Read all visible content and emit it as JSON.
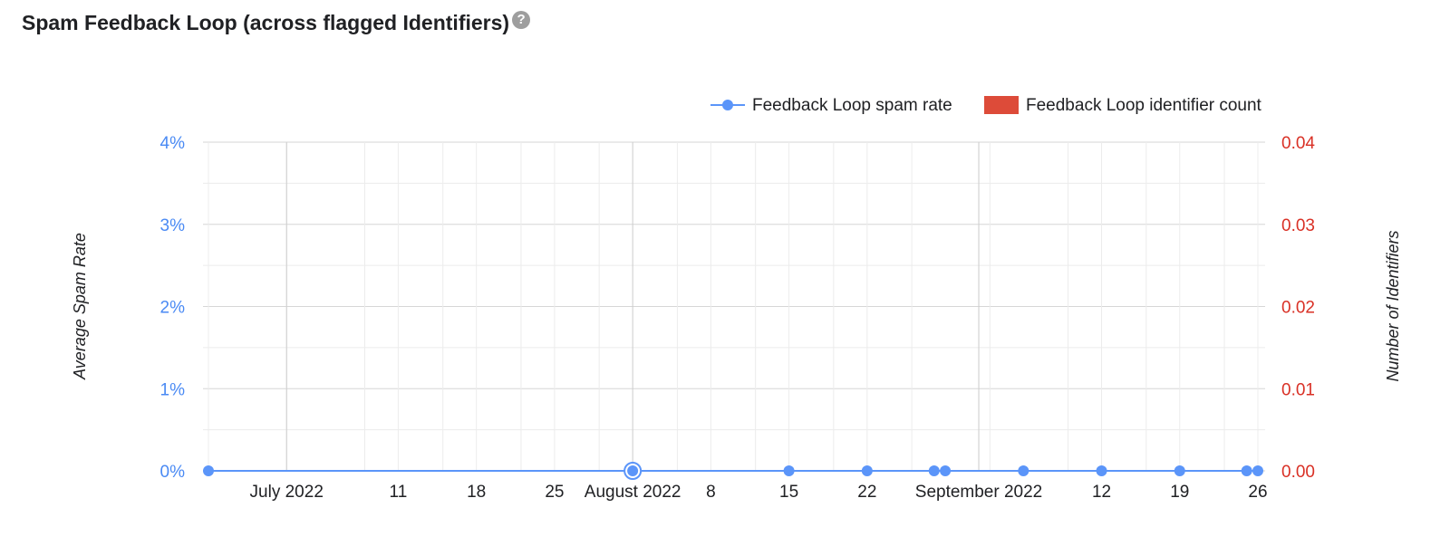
{
  "header": {
    "title": "Spam Feedback Loop (across flagged Identifiers)",
    "help_icon": "question-mark-circle-icon"
  },
  "chart_data": {
    "type": "line",
    "title": "Spam Feedback Loop (across flagged Identifiers)",
    "legend": {
      "placement": "top-right",
      "entries": [
        {
          "name": "Feedback Loop spam rate",
          "color": "#5b95f9",
          "marker": "line-dot"
        },
        {
          "name": "Feedback Loop identifier count",
          "color": "#dd4b39",
          "marker": "box"
        }
      ]
    },
    "y_left": {
      "label": "Average Spam Rate",
      "range": [
        0,
        4
      ],
      "ticks": [
        "0%",
        "1%",
        "2%",
        "3%",
        "4%"
      ],
      "color": "#4a8af4"
    },
    "y_right": {
      "label": "Number of Identifiers",
      "range": [
        0,
        0.04
      ],
      "ticks": [
        "0.00",
        "0.01",
        "0.02",
        "0.03",
        "0.04"
      ],
      "color": "#d93025"
    },
    "x_axis": {
      "range": [
        "2022-06-24",
        "2022-09-26"
      ],
      "tick_labels": [
        {
          "date": "2022-07-01",
          "label": "July 2022",
          "major": true
        },
        {
          "date": "2022-07-11",
          "label": "11",
          "major": false
        },
        {
          "date": "2022-07-18",
          "label": "18",
          "major": false
        },
        {
          "date": "2022-07-25",
          "label": "25",
          "major": false
        },
        {
          "date": "2022-08-01",
          "label": "August 2022",
          "major": true
        },
        {
          "date": "2022-08-08",
          "label": "8",
          "major": false
        },
        {
          "date": "2022-08-15",
          "label": "15",
          "major": false
        },
        {
          "date": "2022-08-22",
          "label": "22",
          "major": false
        },
        {
          "date": "2022-09-01",
          "label": "September 2022",
          "major": true
        },
        {
          "date": "2022-09-12",
          "label": "12",
          "major": false
        },
        {
          "date": "2022-09-19",
          "label": "19",
          "major": false
        },
        {
          "date": "2022-09-26",
          "label": "26",
          "major": false
        }
      ]
    },
    "grid": true,
    "series": [
      {
        "name": "Feedback Loop spam rate",
        "color": "#5b95f9",
        "axis": "left",
        "points": [
          {
            "x": "2022-06-24",
            "y": 0
          },
          {
            "x": "2022-08-01",
            "y": 0,
            "highlighted": true
          },
          {
            "x": "2022-08-15",
            "y": 0
          },
          {
            "x": "2022-08-22",
            "y": 0
          },
          {
            "x": "2022-08-28",
            "y": 0
          },
          {
            "x": "2022-08-29",
            "y": 0
          },
          {
            "x": "2022-09-05",
            "y": 0
          },
          {
            "x": "2022-09-12",
            "y": 0
          },
          {
            "x": "2022-09-19",
            "y": 0
          },
          {
            "x": "2022-09-25",
            "y": 0
          },
          {
            "x": "2022-09-26",
            "y": 0
          }
        ]
      },
      {
        "name": "Feedback Loop identifier count",
        "color": "#dd4b39",
        "axis": "right",
        "points": []
      }
    ]
  }
}
